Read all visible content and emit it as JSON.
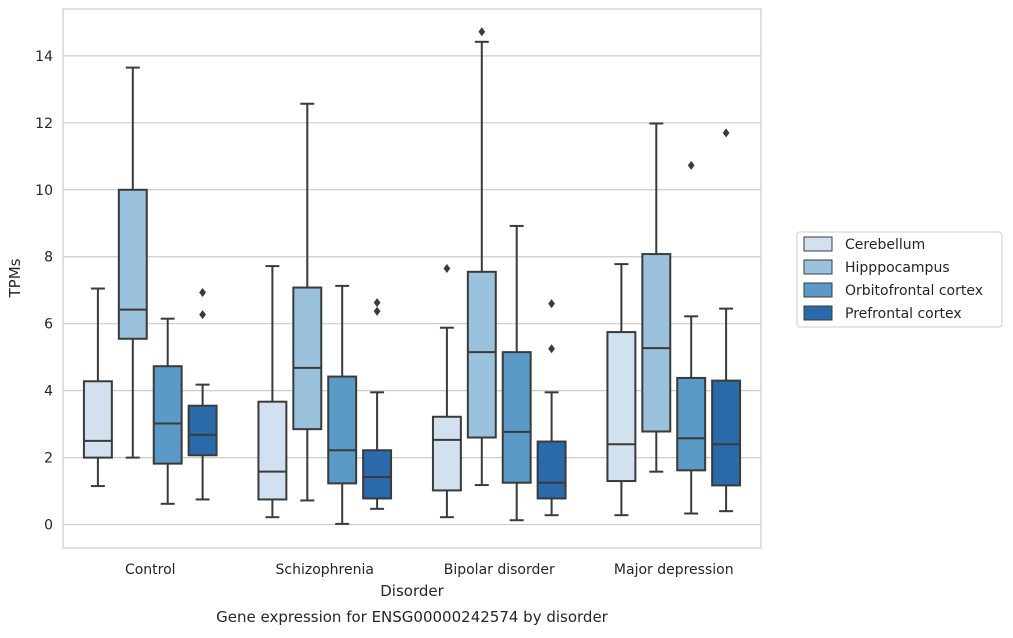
{
  "chart_data": {
    "type": "box",
    "caption": "Gene expression for ENSG00000242574 by disorder",
    "xlabel": "Disorder",
    "ylabel": "TPMs",
    "ylim": [
      -0.7,
      15.4
    ],
    "yticks": [
      0,
      2,
      4,
      6,
      8,
      10,
      12,
      14
    ],
    "grid": "horizontal",
    "legend_position": "right",
    "categories": [
      "Control",
      "Schizophrenia",
      "Bipolar disorder",
      "Major depression"
    ],
    "series": [
      {
        "name": "Cerebellum",
        "color": "#d2e1f0",
        "boxes": [
          {
            "whisker_low": 1.15,
            "q1": 2.0,
            "median": 2.5,
            "q3": 4.28,
            "whisker_high": 7.05,
            "outliers": []
          },
          {
            "whisker_low": 0.22,
            "q1": 0.75,
            "median": 1.58,
            "q3": 3.67,
            "whisker_high": 7.72,
            "outliers": []
          },
          {
            "whisker_low": 0.22,
            "q1": 1.02,
            "median": 2.53,
            "q3": 3.22,
            "whisker_high": 5.88,
            "outliers": [
              7.65
            ]
          },
          {
            "whisker_low": 0.28,
            "q1": 1.3,
            "median": 2.4,
            "q3": 5.75,
            "whisker_high": 7.78,
            "outliers": []
          }
        ]
      },
      {
        "name": "Hipppocampus",
        "color": "#9ac2dc",
        "boxes": [
          {
            "whisker_low": 2.0,
            "q1": 5.55,
            "median": 6.42,
            "q3": 10.0,
            "whisker_high": 13.65,
            "outliers": []
          },
          {
            "whisker_low": 0.72,
            "q1": 2.85,
            "median": 4.68,
            "q3": 7.08,
            "whisker_high": 12.57,
            "outliers": []
          },
          {
            "whisker_low": 1.18,
            "q1": 2.6,
            "median": 5.15,
            "q3": 7.55,
            "whisker_high": 14.42,
            "outliers": [
              14.72
            ]
          },
          {
            "whisker_low": 1.58,
            "q1": 2.78,
            "median": 5.27,
            "q3": 8.08,
            "whisker_high": 11.98,
            "outliers": []
          }
        ]
      },
      {
        "name": "Orbitofrontal cortex",
        "color": "#5b99c7",
        "boxes": [
          {
            "whisker_low": 0.62,
            "q1": 1.82,
            "median": 3.02,
            "q3": 4.73,
            "whisker_high": 6.15,
            "outliers": []
          },
          {
            "whisker_low": 0.02,
            "q1": 1.23,
            "median": 2.22,
            "q3": 4.42,
            "whisker_high": 7.13,
            "outliers": []
          },
          {
            "whisker_low": 0.13,
            "q1": 1.25,
            "median": 2.77,
            "q3": 5.15,
            "whisker_high": 8.92,
            "outliers": []
          },
          {
            "whisker_low": 0.33,
            "q1": 1.62,
            "median": 2.58,
            "q3": 4.38,
            "whisker_high": 6.22,
            "outliers": [
              10.73
            ]
          }
        ]
      },
      {
        "name": "Prefrontal cortex",
        "color": "#2a6aaa",
        "boxes": [
          {
            "whisker_low": 0.75,
            "q1": 2.07,
            "median": 2.68,
            "q3": 3.55,
            "whisker_high": 4.18,
            "outliers": [
              6.27,
              6.93
            ]
          },
          {
            "whisker_low": 0.47,
            "q1": 0.78,
            "median": 1.42,
            "q3": 2.22,
            "whisker_high": 3.95,
            "outliers": [
              6.37,
              6.63
            ]
          },
          {
            "whisker_low": 0.28,
            "q1": 0.78,
            "median": 1.25,
            "q3": 2.48,
            "whisker_high": 3.95,
            "outliers": [
              5.25,
              6.6
            ]
          },
          {
            "whisker_low": 0.4,
            "q1": 1.17,
            "median": 2.4,
            "q3": 4.3,
            "whisker_high": 6.45,
            "outliers": [
              11.7
            ]
          }
        ]
      }
    ]
  }
}
